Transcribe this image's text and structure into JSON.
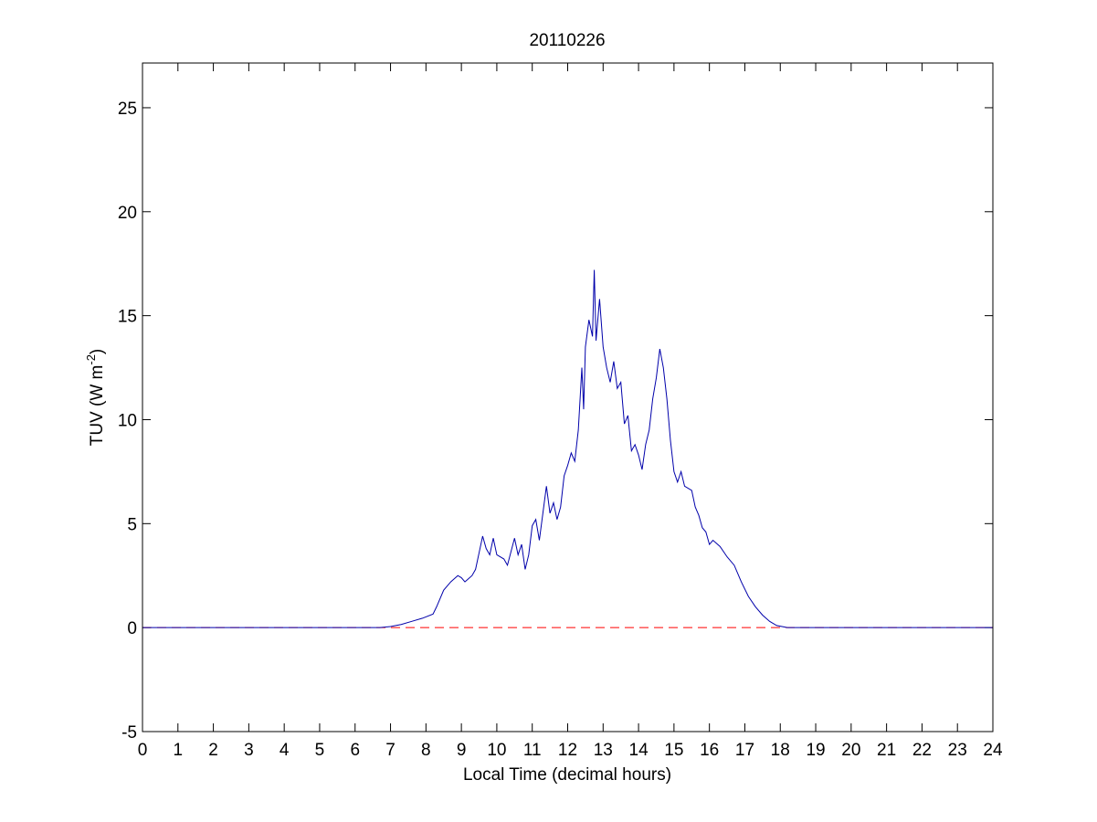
{
  "chart_data": {
    "type": "line",
    "title": "20110226",
    "xlabel": "Local Time (decimal hours)",
    "ylabel": {
      "main": "TUV (W m",
      "superscript": "-2",
      "end": ")"
    },
    "series": [
      {
        "name": "TUV",
        "color": "#0000aa",
        "dash": false,
        "x": [
          0,
          6.7,
          7.0,
          7.3,
          7.6,
          7.9,
          8.2,
          8.3,
          8.5,
          8.7,
          8.9,
          9.0,
          9.1,
          9.3,
          9.4,
          9.5,
          9.6,
          9.7,
          9.8,
          9.9,
          10.0,
          10.2,
          10.3,
          10.5,
          10.6,
          10.7,
          10.8,
          10.9,
          11.0,
          11.1,
          11.2,
          11.4,
          11.5,
          11.6,
          11.7,
          11.8,
          11.9,
          12.0,
          12.1,
          12.2,
          12.3,
          12.4,
          12.45,
          12.5,
          12.6,
          12.7,
          12.75,
          12.8,
          12.9,
          13.0,
          13.1,
          13.2,
          13.3,
          13.4,
          13.5,
          13.6,
          13.7,
          13.8,
          13.9,
          14.0,
          14.1,
          14.2,
          14.3,
          14.4,
          14.5,
          14.6,
          14.7,
          14.8,
          14.9,
          15.0,
          15.1,
          15.2,
          15.3,
          15.5,
          15.6,
          15.7,
          15.8,
          15.9,
          16.0,
          16.1,
          16.3,
          16.5,
          16.7,
          16.9,
          17.1,
          17.3,
          17.5,
          17.7,
          17.9,
          18.2,
          24
        ],
        "values": [
          0,
          0,
          0.05,
          0.15,
          0.3,
          0.45,
          0.65,
          1.0,
          1.8,
          2.2,
          2.5,
          2.4,
          2.2,
          2.5,
          2.8,
          3.6,
          4.4,
          3.8,
          3.5,
          4.3,
          3.5,
          3.3,
          3.0,
          4.3,
          3.5,
          4.0,
          2.8,
          3.5,
          4.9,
          5.2,
          4.2,
          6.8,
          5.5,
          6.0,
          5.2,
          5.8,
          7.3,
          7.8,
          8.4,
          8.0,
          9.5,
          12.5,
          10.5,
          13.5,
          14.8,
          14.0,
          17.2,
          13.8,
          15.8,
          13.5,
          12.5,
          11.8,
          12.8,
          11.5,
          11.8,
          9.8,
          10.2,
          8.5,
          8.8,
          8.3,
          7.6,
          8.8,
          9.5,
          11.0,
          12.0,
          13.4,
          12.5,
          11.0,
          9.0,
          7.5,
          7.0,
          7.5,
          6.8,
          6.6,
          5.8,
          5.4,
          4.8,
          4.6,
          4.0,
          4.2,
          3.9,
          3.4,
          3.0,
          2.2,
          1.5,
          1.0,
          0.6,
          0.3,
          0.1,
          0,
          0
        ]
      },
      {
        "name": "zero",
        "color": "#ff0000",
        "dash": true,
        "x": [
          0,
          24
        ],
        "values": [
          0,
          0
        ]
      }
    ],
    "xlim": [
      0,
      24
    ],
    "xticks": [
      0,
      1,
      2,
      3,
      4,
      5,
      6,
      7,
      8,
      9,
      10,
      11,
      12,
      13,
      14,
      15,
      16,
      17,
      18,
      19,
      20,
      21,
      22,
      23,
      24
    ],
    "ylim": [
      -5,
      27.15
    ],
    "yticks": [
      -5,
      0,
      5,
      10,
      15,
      20,
      25
    ],
    "grid": false
  }
}
